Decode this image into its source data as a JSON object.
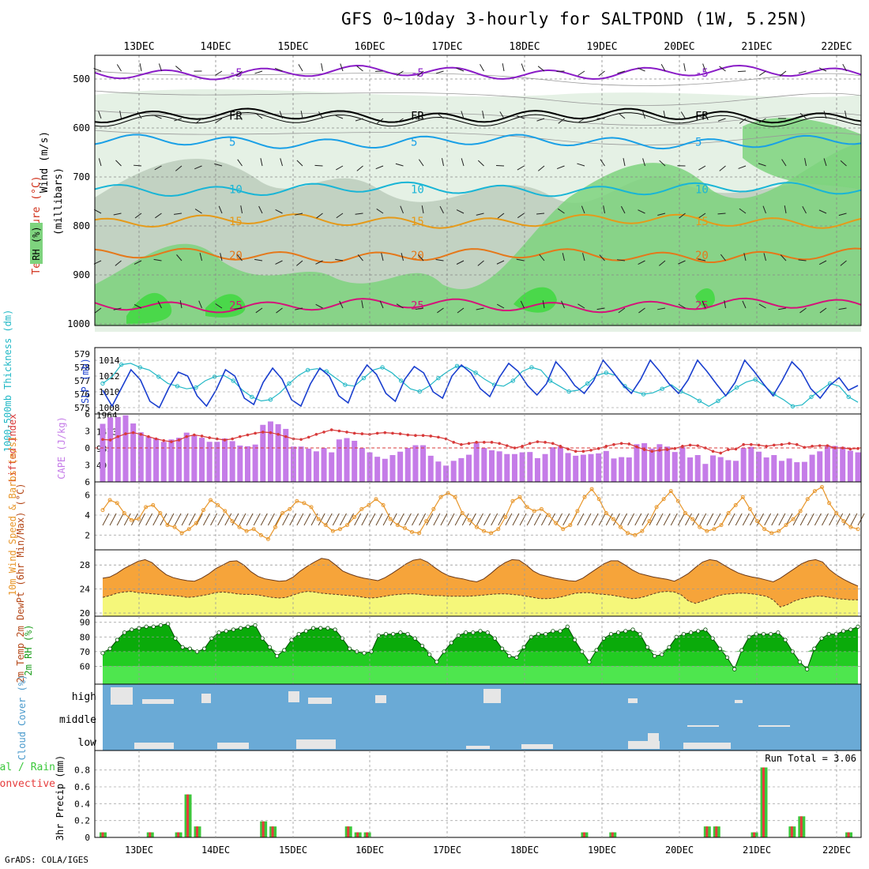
{
  "title": "GFS 0~10day 3-hourly for SALTPOND (1W, 5.25N)",
  "credit": "GrADS: COLA/IGES",
  "colors": {
    "rh_light": "#e0efe0",
    "rh_mid": "#bccdbc",
    "rh_green": "#7ed37e",
    "rh_bright": "#3fd83f",
    "temp_m5": "#8a1cc7",
    "temp_fr": "#000000",
    "temp_5": "#1aa0e6",
    "temp_10": "#19b5d6",
    "temp_15": "#e59a1a",
    "temp_20": "#e5781a",
    "temp_25": "#d4137a",
    "slp": "#1a3fcf",
    "thick": "#22b8c6",
    "lifted": "#d83a3a",
    "cape": "#c57ce8",
    "wind10": "#e8962a",
    "temp_fill": "#f6a43a",
    "temp_top": "#e8620a",
    "dew_fill": "#f5f77a",
    "rh_dark": "#009c00",
    "rh_mid2": "#22cc22",
    "rh_lite": "#4ee64e",
    "cloud_bg": "#6aaad6",
    "cloud_bar": "#e6e6e6",
    "precip_total": "#3cc83c",
    "precip_conv": "#e63c3c"
  },
  "chart_data": [
    {
      "panel": "cross-section",
      "type": "heatmap",
      "ylabel": "(millibars)",
      "legend_labels": [
        "Wind (m/s)",
        "Temperature (°C)",
        "RH (%)"
      ],
      "yticks": [
        500,
        600,
        700,
        800,
        900,
        1000
      ],
      "x_date_labels": [
        "13DEC",
        "14DEC",
        "15DEC",
        "16DEC",
        "17DEC",
        "18DEC",
        "19DEC",
        "20DEC",
        "21DEC",
        "22DEC"
      ],
      "isotherm_labels": [
        {
          "label": "-5",
          "level": 487
        },
        {
          "label": "FR",
          "level": 575
        },
        {
          "label": "5",
          "level": 628
        },
        {
          "label": "10",
          "level": 725
        },
        {
          "label": "15",
          "level": 790
        },
        {
          "label": "20",
          "level": 860
        },
        {
          "label": "25",
          "level": 962
        }
      ],
      "rh_contour_labels": [
        "30",
        "50",
        "10",
        "30",
        "50",
        "30"
      ]
    },
    {
      "panel": "slp-thickness",
      "type": "line",
      "ylabel_left": "1000-500mb Thickness (dm)",
      "ylabel_right": "SLP (mb)",
      "thickness_ticks": [
        575,
        576,
        577,
        578,
        579
      ],
      "slp_ticks": [
        1008,
        1010,
        1012,
        1014
      ],
      "series": [
        {
          "name": "SLP",
          "values": [
            1010.2,
            1008.2,
            1010.5,
            1012.8,
            1011.5,
            1008.8,
            1008.0,
            1010.5,
            1012.5,
            1012.0,
            1009.5,
            1008.2,
            1010.2,
            1012.8,
            1012.0,
            1009.2,
            1008.4,
            1011.2,
            1013.0,
            1011.6,
            1009.0,
            1008.2,
            1011.0,
            1013.0,
            1012.0,
            1009.5,
            1008.6,
            1011.6,
            1013.4,
            1012.2,
            1009.8,
            1008.8,
            1011.6,
            1013.2,
            1012.4,
            1010.0,
            1009.2,
            1012.0,
            1013.4,
            1012.4,
            1010.4,
            1009.4,
            1011.8,
            1013.6,
            1012.6,
            1010.8,
            1009.6,
            1011.0,
            1013.8,
            1012.5,
            1010.8,
            1009.8,
            1011.4,
            1014.0,
            1012.6,
            1011.0,
            1009.8,
            1011.6,
            1014.0,
            1012.6,
            1011.0,
            1009.8,
            1011.5,
            1014.0,
            1012.6,
            1011.0,
            1009.5,
            1011.2,
            1014.0,
            1012.6,
            1011.0,
            1009.5,
            1011.5,
            1013.8,
            1012.6,
            1010.4,
            1009.2,
            1010.8,
            1011.8,
            1010.2,
            1010.8
          ]
        },
        {
          "name": "Thickness",
          "values": [
            576.8,
            577.3,
            578.2,
            578.3,
            578.0,
            577.8,
            577.3,
            576.8,
            576.6,
            576.4,
            576.5,
            577.0,
            577.3,
            577.4,
            577.0,
            576.3,
            575.8,
            575.5,
            575.6,
            576.1,
            576.8,
            577.4,
            577.8,
            577.9,
            577.7,
            577.2,
            576.7,
            576.6,
            577.2,
            577.8,
            578.0,
            577.6,
            577.0,
            576.4,
            576.2,
            576.6,
            577.2,
            577.7,
            578.1,
            578.0,
            577.6,
            577.1,
            576.7,
            576.6,
            577.0,
            577.7,
            578.0,
            577.8,
            577.0,
            576.6,
            576.2,
            576.3,
            576.8,
            577.4,
            577.6,
            577.4,
            576.6,
            576.2,
            576.0,
            576.1,
            576.4,
            576.7,
            576.2,
            575.9,
            575.5,
            575.1,
            575.5,
            576.0,
            576.5,
            576.9,
            577.1,
            576.6,
            576.0,
            575.6,
            575.1,
            575.2,
            575.8,
            576.3,
            576.8,
            576.6,
            575.8,
            575.4
          ]
        }
      ]
    },
    {
      "panel": "lifted-cape",
      "type": "bar",
      "ylabel_left": "Lifted Index",
      "ylabel_right": "CAPE (J/kg)",
      "lifted_ticks": [
        -6,
        -3,
        0,
        3,
        6
      ],
      "cape_ticks": [
        491,
        982,
        1473,
        1964
      ],
      "cape": [
        1710,
        1900,
        1910,
        1960,
        1720,
        1460,
        1330,
        1280,
        1180,
        1250,
        1300,
        1450,
        1380,
        1300,
        1180,
        1180,
        1280,
        1200,
        1070,
        1050,
        1100,
        1680,
        1780,
        1700,
        1560,
        1040,
        1040,
        980,
        900,
        1000,
        870,
        1250,
        1290,
        1210,
        1000,
        870,
        740,
        680,
        790,
        890,
        1000,
        1080,
        1080,
        770,
        600,
        480,
        620,
        700,
        800,
        1150,
        1000,
        930,
        900,
        820,
        820,
        870,
        880,
        700,
        820,
        1020,
        1040,
        850,
        770,
        800,
        820,
        840,
        910,
        690,
        730,
        720,
        1110,
        1140,
        980,
        1110,
        1040,
        880,
        1030,
        720,
        790,
        530,
        780,
        730,
        640,
        620,
        1000,
        1030,
        890,
        720,
        790,
        620,
        690,
        580,
        590,
        800,
        900,
        1080,
        1060,
        1030,
        920,
        870
      ],
      "lifted": [
        -1.5,
        -1.4,
        -2.0,
        -2.5,
        -2.7,
        -2.4,
        -2.0,
        -1.6,
        -1.3,
        -1.1,
        -1.4,
        -2.0,
        -2.3,
        -2.1,
        -1.8,
        -1.6,
        -1.4,
        -1.6,
        -2.0,
        -2.3,
        -2.6,
        -2.8,
        -2.7,
        -2.4,
        -2.0,
        -1.6,
        -1.5,
        -1.9,
        -2.4,
        -2.8,
        -3.2,
        -3.0,
        -2.8,
        -2.6,
        -2.5,
        -2.4,
        -2.6,
        -2.7,
        -2.6,
        -2.5,
        -2.3,
        -2.2,
        -2.2,
        -2.1,
        -1.9,
        -1.6,
        -1.0,
        -0.6,
        -0.8,
        -1.0,
        -1.0,
        -1.0,
        -0.8,
        -0.4,
        0.0,
        -0.3,
        -0.8,
        -1.1,
        -1.0,
        -0.8,
        -0.3,
        0.2,
        0.6,
        0.6,
        0.4,
        0.1,
        -0.3,
        -0.6,
        -0.8,
        -0.7,
        -0.2,
        0.3,
        0.6,
        0.4,
        0.3,
        0.1,
        -0.3,
        -0.5,
        -0.4,
        0.0,
        0.6,
        0.9,
        0.3,
        0.2,
        -0.6,
        -0.6,
        -0.5,
        -0.3,
        -0.5,
        -0.6,
        -0.8,
        -0.6,
        -0.1,
        -0.3,
        -0.4,
        -0.4,
        0.0,
        0.0,
        0.2,
        0.1
      ],
      "zero_ref": 0
    },
    {
      "panel": "wind10m",
      "type": "line",
      "ylabel": "10m Wind Speed & Barbs (m/s)",
      "yticks": [
        2,
        4,
        6
      ],
      "values": [
        4.5,
        5.5,
        5.2,
        4.2,
        3.5,
        3.6,
        4.8,
        5.0,
        4.2,
        3.0,
        2.8,
        2.2,
        2.6,
        3.2,
        4.5,
        5.5,
        5.0,
        4.4,
        3.4,
        2.8,
        2.4,
        2.6,
        2.0,
        1.6,
        2.8,
        4.2,
        4.6,
        5.4,
        5.2,
        4.8,
        3.6,
        3.0,
        2.4,
        2.6,
        3.0,
        3.8,
        4.6,
        5.0,
        5.6,
        5.0,
        3.6,
        3.0,
        2.7,
        2.3,
        2.2,
        3.4,
        4.6,
        5.8,
        6.2,
        5.8,
        4.2,
        3.5,
        2.8,
        2.4,
        2.2,
        2.6,
        3.8,
        5.4,
        5.8,
        4.8,
        4.4,
        4.6,
        4.0,
        3.2,
        2.6,
        3.0,
        4.4,
        5.8,
        6.6,
        5.6,
        4.2,
        3.6,
        2.8,
        2.2,
        2.0,
        2.4,
        3.4,
        4.8,
        5.6,
        6.4,
        5.4,
        4.2,
        3.6,
        2.8,
        2.4,
        2.6,
        3.0,
        4.2,
        5.0,
        5.8,
        4.6,
        3.4,
        2.6,
        2.2,
        2.4,
        3.0,
        3.6,
        4.4,
        5.6,
        6.4,
        6.8,
        5.2,
        4.2,
        3.4,
        2.8,
        2.6
      ]
    },
    {
      "panel": "temp2m",
      "type": "area",
      "ylabel": "2m Temp 2m DewPt (6hr Min/Max) (°C)",
      "yticks": [
        20,
        24,
        28
      ],
      "temp": [
        25.8,
        26.0,
        26.6,
        27.4,
        28.0,
        28.6,
        28.9,
        28.4,
        27.3,
        26.4,
        25.9,
        25.6,
        25.4,
        25.3,
        25.8,
        26.5,
        27.4,
        28.0,
        28.6,
        28.7,
        28.0,
        26.9,
        26.1,
        25.7,
        25.5,
        25.3,
        25.4,
        26.0,
        27.0,
        27.8,
        28.5,
        29.1,
        28.9,
        28.0,
        27.0,
        26.5,
        26.1,
        25.8,
        25.6,
        25.4,
        25.9,
        26.6,
        27.4,
        28.2,
        28.8,
        29.0,
        28.5,
        27.6,
        26.8,
        26.2,
        25.9,
        25.7,
        25.4,
        25.2,
        25.7,
        26.6,
        27.6,
        28.4,
        28.9,
        28.8,
        28.0,
        27.0,
        26.4,
        26.1,
        25.8,
        25.6,
        25.4,
        25.3,
        25.8,
        26.6,
        27.4,
        28.2,
        28.7,
        28.7,
        28.0,
        27.2,
        26.6,
        26.3,
        26.0,
        25.8,
        25.6,
        25.3,
        25.9,
        26.6,
        27.6,
        28.5,
        28.9,
        28.7,
        28.0,
        27.3,
        26.7,
        26.3,
        26.0,
        25.8,
        25.5,
        25.2,
        25.8,
        26.6,
        27.4,
        28.2,
        28.7,
        28.9,
        28.5,
        27.2,
        26.3,
        25.6,
        25.0,
        24.5
      ],
      "dewpoint": [
        22.6,
        22.9,
        23.3,
        23.5,
        23.6,
        23.4,
        23.3,
        23.2,
        23.1,
        23.0,
        22.9,
        22.8,
        22.6,
        22.7,
        22.9,
        23.1,
        23.4,
        23.5,
        23.4,
        23.2,
        23.1,
        23.1,
        23.0,
        22.8,
        22.6,
        22.5,
        22.6,
        23.0,
        23.4,
        23.6,
        23.5,
        23.3,
        23.2,
        23.1,
        23.0,
        22.9,
        22.8,
        22.6,
        22.5,
        22.6,
        22.8,
        23.0,
        23.1,
        23.2,
        23.2,
        23.1,
        23.0,
        22.9,
        22.9,
        22.8,
        22.8,
        22.8,
        22.8,
        22.9,
        23.0,
        23.1,
        23.2,
        23.2,
        23.1,
        23.0,
        22.8,
        22.6,
        22.4,
        22.4,
        22.5,
        22.7,
        23.0,
        23.3,
        23.4,
        23.4,
        23.2,
        23.1,
        23.0,
        22.8,
        22.6,
        22.4,
        22.5,
        22.8,
        23.2,
        23.5,
        23.6,
        23.5,
        23.0,
        22.0,
        21.6,
        22.0,
        22.4,
        22.8,
        23.1,
        23.2,
        23.3,
        23.3,
        23.2,
        23.0,
        22.8,
        22.2,
        21.0,
        21.4,
        22.0,
        22.4,
        22.6,
        22.8,
        22.8,
        22.6,
        22.4,
        22.3,
        22.2,
        22.2
      ]
    },
    {
      "panel": "rh2m",
      "type": "area",
      "ylabel": "2m RH (%)",
      "yticks": [
        60,
        70,
        80,
        90
      ],
      "values": [
        69,
        72,
        78,
        83,
        85,
        86,
        87,
        87,
        88,
        89,
        79,
        73,
        72,
        70,
        72,
        79,
        83,
        84,
        85,
        86,
        87,
        88,
        79,
        73,
        67,
        71,
        78,
        82,
        84,
        86,
        86,
        86,
        85,
        79,
        72,
        70,
        69,
        70,
        81,
        82,
        82,
        83,
        82,
        79,
        74,
        68,
        63,
        70,
        76,
        81,
        83,
        83,
        84,
        83,
        79,
        72,
        67,
        66,
        73,
        80,
        82,
        82,
        84,
        84,
        87,
        78,
        70,
        63,
        71,
        79,
        82,
        83,
        84,
        85,
        82,
        73,
        67,
        68,
        73,
        80,
        82,
        83,
        84,
        85,
        79,
        72,
        66,
        58,
        71,
        80,
        82,
        82,
        82,
        83,
        78,
        70,
        63,
        58,
        72,
        79,
        82,
        82,
        84,
        85,
        87
      ]
    },
    {
      "panel": "cloud",
      "type": "bar",
      "ylabel": "Cloud Cover (%)",
      "labels": [
        "high",
        "middle",
        "low"
      ]
    },
    {
      "panel": "precip",
      "type": "bar",
      "ylabel": "3hr Precip (mm)",
      "legend": [
        "Total / Rain",
        "Convective"
      ],
      "run_total_label": "Run Total = 3.06",
      "yticks": [
        0,
        0.2,
        0.4,
        0.6,
        0.8
      ],
      "bars": [
        {
          "index": 0,
          "total": 0.06,
          "conv": 0.06
        },
        {
          "index": 5,
          "total": 0.06,
          "conv": 0.06
        },
        {
          "index": 8,
          "total": 0.06,
          "conv": 0.06
        },
        {
          "index": 9,
          "total": 0.51,
          "conv": 0.51
        },
        {
          "index": 10,
          "total": 0.13,
          "conv": 0.13
        },
        {
          "index": 17,
          "total": 0.19,
          "conv": 0.19
        },
        {
          "index": 18,
          "total": 0.13,
          "conv": 0.13
        },
        {
          "index": 26,
          "total": 0.13,
          "conv": 0.13
        },
        {
          "index": 27,
          "total": 0.06,
          "conv": 0.06
        },
        {
          "index": 28,
          "total": 0.06,
          "conv": 0.06
        },
        {
          "index": 51,
          "total": 0.06,
          "conv": 0.06
        },
        {
          "index": 54,
          "total": 0.06,
          "conv": 0.06
        },
        {
          "index": 64,
          "total": 0.13,
          "conv": 0.13
        },
        {
          "index": 65,
          "total": 0.13,
          "conv": 0.13
        },
        {
          "index": 69,
          "total": 0.06,
          "conv": 0.06
        },
        {
          "index": 70,
          "total": 0.83,
          "conv": 0.83
        },
        {
          "index": 73,
          "total": 0.13,
          "conv": 0.13
        },
        {
          "index": 74,
          "total": 0.25,
          "conv": 0.25
        },
        {
          "index": 79,
          "total": 0.06,
          "conv": 0.06
        }
      ],
      "x_date_labels": [
        "13DEC",
        "14DEC",
        "15DEC",
        "16DEC",
        "17DEC",
        "18DEC",
        "19DEC",
        "20DEC",
        "21DEC",
        "22DEC"
      ]
    }
  ]
}
